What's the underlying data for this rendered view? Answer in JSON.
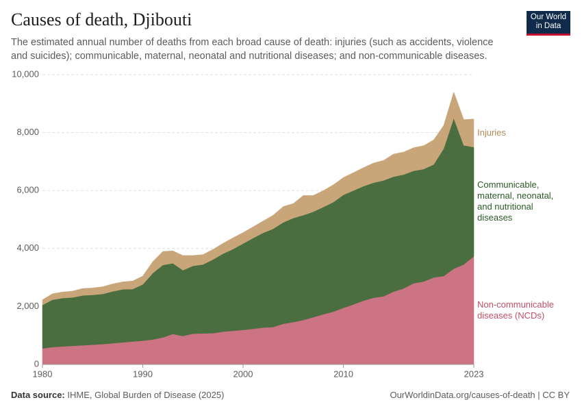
{
  "header": {
    "title": "Causes of death, Djibouti",
    "subtitle": "The estimated annual number of deaths from each broad cause of death: injuries (such as accidents, violence and suicides); communicable, maternal, neonatal and nutritional diseases; and non-communicable diseases.",
    "logo": "Our World in Data"
  },
  "footer": {
    "source_label": "Data source:",
    "source": "IHME, Global Burden of Disease (2025)",
    "url": "OurWorldinData.org/causes-of-death | CC BY"
  },
  "chart_data": {
    "type": "stacked_area",
    "x": [
      1980,
      1981,
      1982,
      1983,
      1984,
      1985,
      1986,
      1987,
      1988,
      1989,
      1990,
      1991,
      1992,
      1993,
      1994,
      1995,
      1996,
      1997,
      1998,
      1999,
      2000,
      2001,
      2002,
      2003,
      2004,
      2005,
      2006,
      2007,
      2008,
      2009,
      2010,
      2011,
      2012,
      2013,
      2014,
      2015,
      2016,
      2017,
      2018,
      2019,
      2020,
      2021,
      2022,
      2023
    ],
    "xlim": [
      1980,
      2023
    ],
    "xticks": [
      1980,
      1990,
      2000,
      2010,
      2023
    ],
    "ylim": [
      0,
      10000
    ],
    "yticks": [
      0,
      {
        "value": 2000,
        "label": "2,000"
      },
      {
        "value": 4000,
        "label": "4,000"
      },
      {
        "value": 6000,
        "label": "6,000"
      },
      {
        "value": 8000,
        "label": "8,000"
      },
      {
        "value": 10000,
        "label": "10,000"
      }
    ],
    "grid": true,
    "series": [
      {
        "name": "Non-communicable diseases (NCDs)",
        "color": "#cc7384",
        "label_color": "#c15065",
        "values": [
          550,
          600,
          620,
          640,
          660,
          680,
          700,
          730,
          760,
          790,
          820,
          860,
          930,
          1050,
          980,
          1060,
          1070,
          1080,
          1130,
          1160,
          1190,
          1230,
          1270,
          1290,
          1400,
          1460,
          1530,
          1630,
          1730,
          1820,
          1950,
          2070,
          2200,
          2300,
          2350,
          2510,
          2620,
          2800,
          2860,
          3000,
          3050,
          3300,
          3450,
          3730
        ]
      },
      {
        "name": "Communicable, maternal, neonatal, and nutritional diseases",
        "color": "#4a6e3f",
        "label_color": "#2b5a27",
        "values": [
          1500,
          1630,
          1670,
          1670,
          1720,
          1720,
          1730,
          1790,
          1830,
          1810,
          1940,
          2290,
          2500,
          2440,
          2270,
          2340,
          2380,
          2540,
          2690,
          2820,
          2980,
          3130,
          3270,
          3390,
          3500,
          3590,
          3620,
          3640,
          3700,
          3780,
          3900,
          3930,
          3950,
          3970,
          4000,
          3970,
          3930,
          3880,
          3880,
          3900,
          4400,
          5200,
          4110,
          3770
        ]
      },
      {
        "name": "Injuries",
        "color": "#c9a67a",
        "label_color": "#b08956",
        "values": [
          180,
          210,
          210,
          220,
          240,
          240,
          250,
          260,
          260,
          280,
          290,
          400,
          470,
          430,
          510,
          360,
          340,
          350,
          360,
          390,
          380,
          390,
          410,
          470,
          550,
          500,
          680,
          560,
          570,
          600,
          600,
          620,
          640,
          680,
          690,
          780,
          780,
          800,
          810,
          850,
          800,
          900,
          890,
          970
        ]
      }
    ]
  }
}
